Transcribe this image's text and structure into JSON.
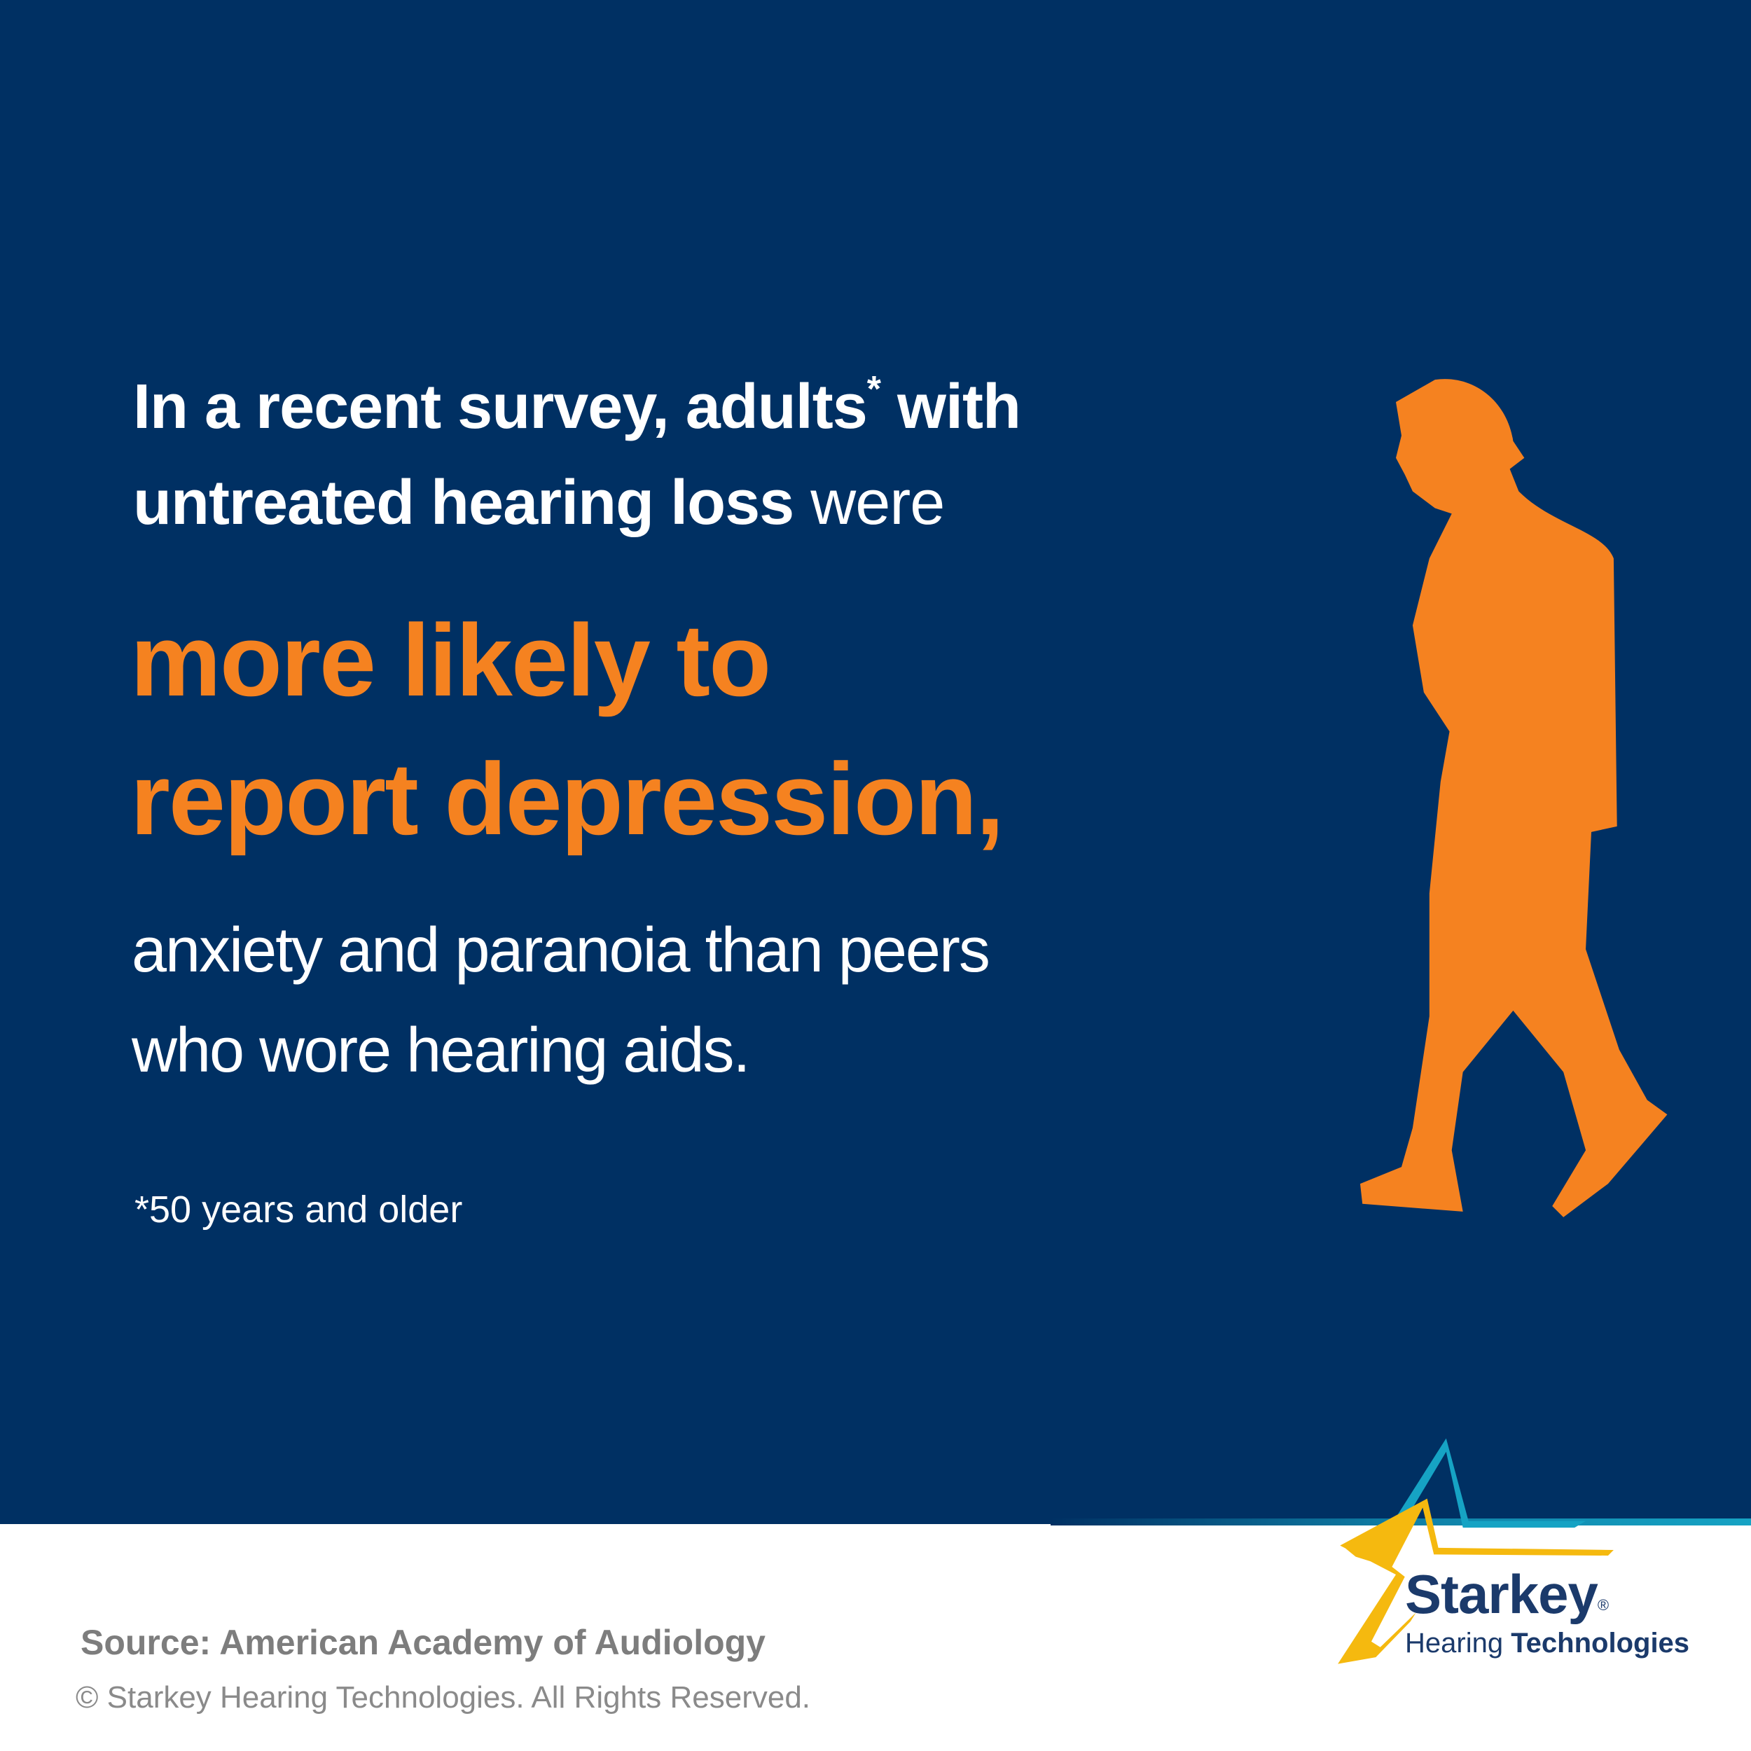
{
  "intro_line_1": {
    "bold": "In a recent survey, adults",
    "superscript": "*",
    "end": "with"
  },
  "intro_line_2": {
    "bold": "untreated hearing loss",
    "regular": "were"
  },
  "highlight": [
    "more likely to",
    "report depression,"
  ],
  "continuation": [
    "anxiety and paranoia than peers",
    "who wore hearing aids."
  ],
  "footnote": "*50 years and older",
  "source": "Source: American Academy of Audiology",
  "copyright": "© Starkey Hearing Technologies. All Rights Reserved.",
  "logo": {
    "brand": "Starkey",
    "registered": "®",
    "tagline_regular": "Hearing",
    "tagline_bold": "Technologies"
  }
}
